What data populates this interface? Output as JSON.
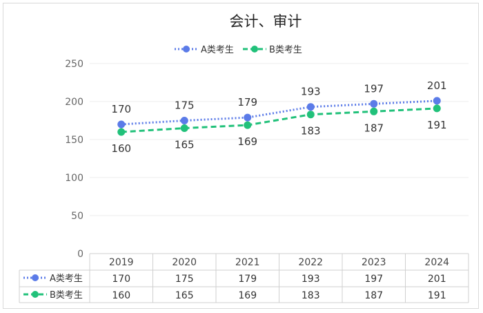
{
  "chart_data": {
    "type": "line",
    "title": "会计、审计",
    "categories": [
      "2019",
      "2020",
      "2021",
      "2022",
      "2023",
      "2024"
    ],
    "ylim": [
      0,
      250
    ],
    "yticks": [
      "0",
      "50",
      "100",
      "150",
      "200",
      "250"
    ],
    "legend_position": "top",
    "grid": true,
    "data_table": true,
    "series": [
      {
        "name": "A类考生",
        "values": [
          170,
          175,
          179,
          193,
          197,
          201
        ],
        "color": "#5b7be8",
        "dash": "dotted",
        "label_position": "above"
      },
      {
        "name": "B类考生",
        "values": [
          160,
          165,
          169,
          183,
          187,
          191
        ],
        "color": "#21c17a",
        "dash": "dashed",
        "label_position": "below"
      }
    ]
  }
}
